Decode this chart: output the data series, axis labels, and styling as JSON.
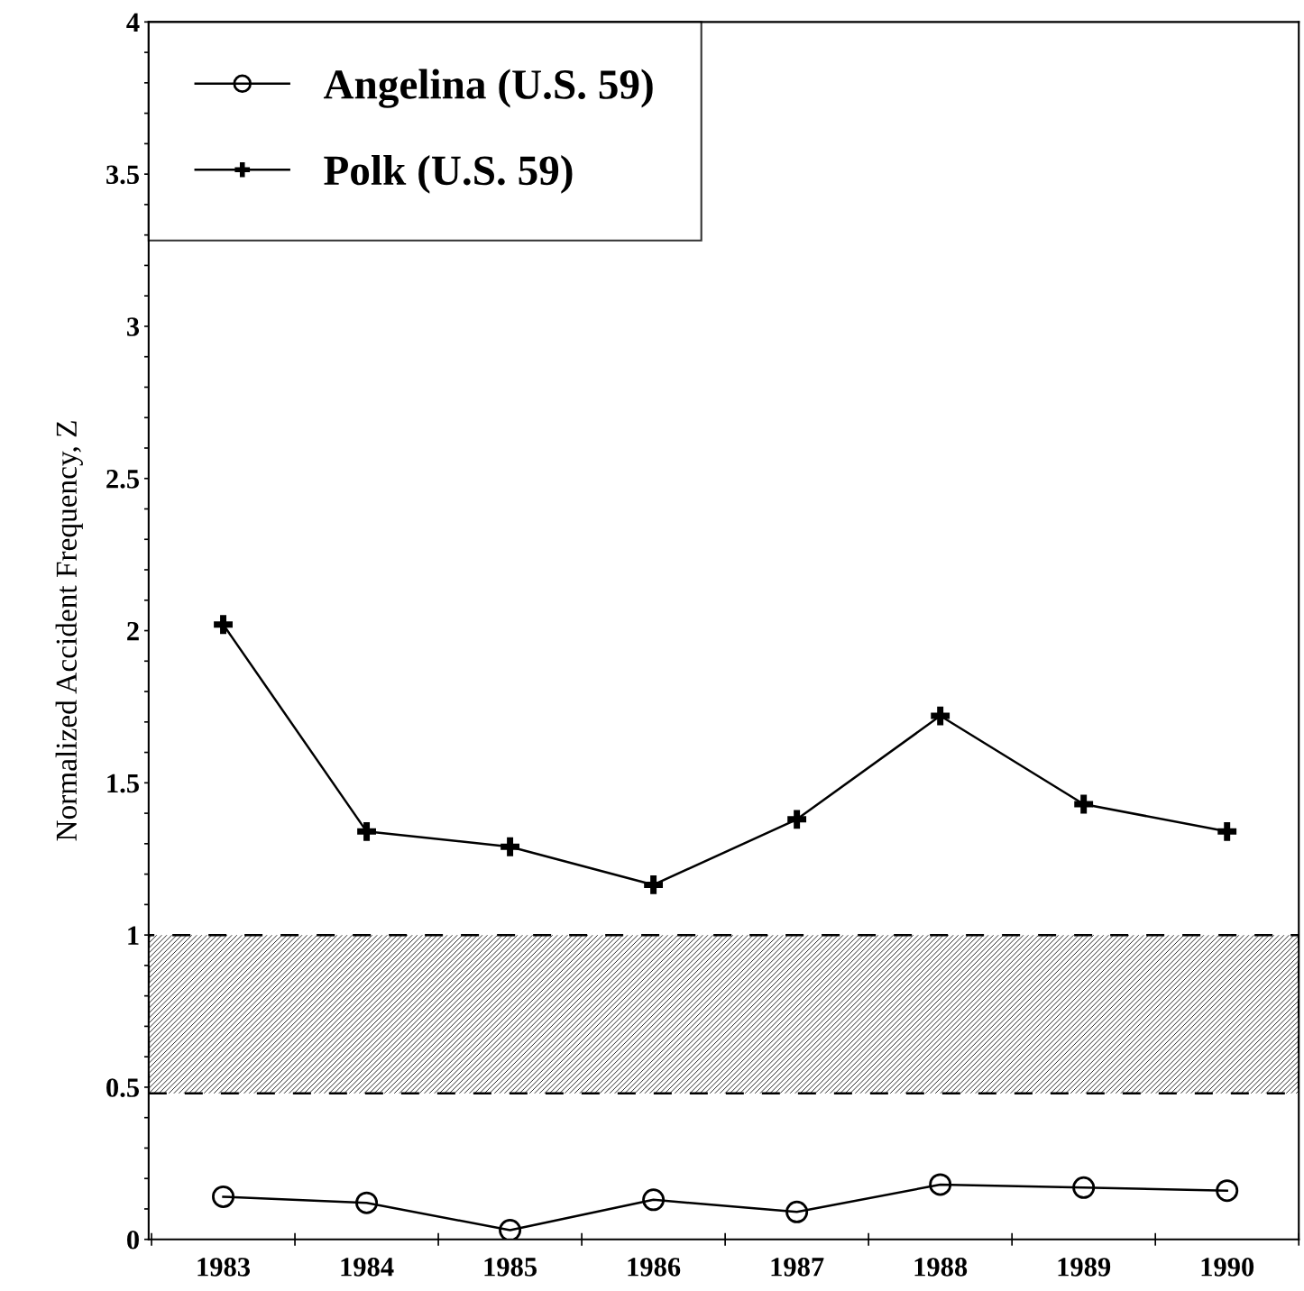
{
  "chart_data": {
    "type": "line",
    "ylabel": "Normalized Accident Frequency, Z",
    "categories": [
      "1983",
      "1984",
      "1985",
      "1986",
      "1987",
      "1988",
      "1989",
      "1990"
    ],
    "series": [
      {
        "name": "Angelina (U.S. 59)",
        "color": "#000000",
        "marker": "circle",
        "values": [
          0.14,
          0.12,
          0.03,
          0.13,
          0.09,
          0.18,
          0.17,
          0.16
        ]
      },
      {
        "name": "Polk (U.S. 59)",
        "color": "#000000",
        "marker": "cross",
        "values": [
          2.02,
          1.34,
          1.29,
          1.165,
          1.38,
          1.72,
          1.43,
          1.34
        ]
      }
    ],
    "ylim": [
      0,
      4
    ],
    "yticks": [
      0,
      {
        "value": 0.1,
        "label": null
      },
      {
        "value": 0.2,
        "label": null
      },
      {
        "value": 0.3,
        "label": null
      },
      {
        "value": 0.4,
        "label": null
      },
      0.5,
      {
        "value": 0.6,
        "label": null
      },
      {
        "value": 0.7,
        "label": null
      },
      {
        "value": 0.8,
        "label": null
      },
      {
        "value": 0.9,
        "label": null
      },
      1,
      {
        "value": 1.1,
        "label": null
      },
      {
        "value": 1.2,
        "label": null
      },
      {
        "value": 1.3,
        "label": null
      },
      {
        "value": 1.4,
        "label": null
      },
      1.5,
      {
        "value": 1.6,
        "label": null
      },
      {
        "value": 1.7,
        "label": null
      },
      {
        "value": 1.8,
        "label": null
      },
      {
        "value": 1.9,
        "label": null
      },
      2,
      {
        "value": 2.1,
        "label": null
      },
      {
        "value": 2.2,
        "label": null
      },
      {
        "value": 2.3,
        "label": null
      },
      {
        "value": 2.4,
        "label": null
      },
      2.5,
      {
        "value": 2.6,
        "label": null
      },
      {
        "value": 2.7,
        "label": null
      },
      {
        "value": 2.8,
        "label": null
      },
      {
        "value": 2.9,
        "label": null
      },
      3,
      {
        "value": 3.1,
        "label": null
      },
      {
        "value": 3.2,
        "label": null
      },
      {
        "value": 3.3,
        "label": null
      },
      {
        "value": 3.4,
        "label": null
      },
      3.5,
      {
        "value": 3.6,
        "label": null
      },
      {
        "value": 3.7,
        "label": null
      },
      {
        "value": 3.8,
        "label": null
      },
      {
        "value": 3.9,
        "label": null
      },
      4
    ],
    "bands": [
      {
        "axis": "y",
        "from": 0.48,
        "to": 1,
        "color": "#000000"
      }
    ],
    "grid": false,
    "legend": "top left",
    "line_style": "solid"
  }
}
